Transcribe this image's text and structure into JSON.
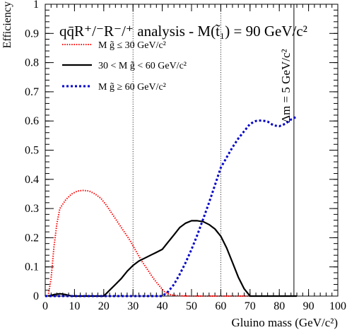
{
  "chart_data": {
    "type": "line",
    "title": "qq̄R⁺/⁻R⁻/⁺ analysis - M(t̃₁) = 90 GeV/c²",
    "xlabel": "Gluino mass (GeV/c²)",
    "ylabel": "Efficiency",
    "xlim": [
      0,
      100
    ],
    "ylim": [
      0,
      1
    ],
    "xticks": [
      "0",
      "10",
      "20",
      "30",
      "40",
      "50",
      "60",
      "70",
      "80",
      "90",
      "100"
    ],
    "yticks": [
      "0",
      "0.1",
      "0.2",
      "0.3",
      "0.4",
      "0.5",
      "0.6",
      "0.7",
      "0.8",
      "0.9",
      "1"
    ],
    "grid": false,
    "legend_position": "top-left",
    "series": [
      {
        "name": "M g̃ ≤ 30 GeV/c²",
        "color": "#ff0000",
        "style": "dotted",
        "points": [
          [
            1,
            0
          ],
          [
            2,
            0.06
          ],
          [
            3,
            0.17
          ],
          [
            4,
            0.25
          ],
          [
            5,
            0.3
          ],
          [
            7,
            0.33
          ],
          [
            9,
            0.35
          ],
          [
            11,
            0.36
          ],
          [
            13,
            0.362
          ],
          [
            15,
            0.36
          ],
          [
            17,
            0.35
          ],
          [
            19,
            0.335
          ],
          [
            21,
            0.31
          ],
          [
            23,
            0.28
          ],
          [
            25,
            0.25
          ],
          [
            27,
            0.22
          ],
          [
            29,
            0.19
          ],
          [
            31,
            0.155
          ],
          [
            33,
            0.12
          ],
          [
            35,
            0.09
          ],
          [
            37,
            0.06
          ],
          [
            39,
            0.035
          ],
          [
            41,
            0.012
          ],
          [
            43,
            0.004
          ],
          [
            46,
            0.001
          ],
          [
            50,
            0
          ],
          [
            86,
            0
          ]
        ]
      },
      {
        "name": "30 < M g̃ < 60 GeV/c²",
        "color": "#000000",
        "style": "solid",
        "points": [
          [
            1,
            0
          ],
          [
            3,
            0.005
          ],
          [
            5,
            0.008
          ],
          [
            7,
            0.005
          ],
          [
            9,
            0
          ],
          [
            20,
            0
          ],
          [
            22,
            0.02
          ],
          [
            24,
            0.04
          ],
          [
            26,
            0.06
          ],
          [
            28,
            0.085
          ],
          [
            30,
            0.105
          ],
          [
            32,
            0.12
          ],
          [
            34,
            0.13
          ],
          [
            36,
            0.14
          ],
          [
            38,
            0.15
          ],
          [
            40,
            0.16
          ],
          [
            42,
            0.185
          ],
          [
            44,
            0.21
          ],
          [
            46,
            0.235
          ],
          [
            48,
            0.25
          ],
          [
            50,
            0.258
          ],
          [
            52,
            0.258
          ],
          [
            54,
            0.255
          ],
          [
            56,
            0.245
          ],
          [
            58,
            0.23
          ],
          [
            60,
            0.205
          ],
          [
            62,
            0.165
          ],
          [
            64,
            0.115
          ],
          [
            66,
            0.065
          ],
          [
            68,
            0.025
          ],
          [
            70,
            0
          ],
          [
            86,
            0
          ]
        ]
      },
      {
        "name": "M g̃ ≥ 60 GeV/c²",
        "color": "#0000cc",
        "style": "dashed",
        "points": [
          [
            0,
            0
          ],
          [
            40,
            0
          ],
          [
            42,
            0.015
          ],
          [
            44,
            0.04
          ],
          [
            46,
            0.075
          ],
          [
            48,
            0.115
          ],
          [
            50,
            0.16
          ],
          [
            52,
            0.21
          ],
          [
            54,
            0.265
          ],
          [
            56,
            0.32
          ],
          [
            58,
            0.38
          ],
          [
            60,
            0.44
          ],
          [
            62,
            0.475
          ],
          [
            64,
            0.51
          ],
          [
            66,
            0.54
          ],
          [
            68,
            0.565
          ],
          [
            70,
            0.59
          ],
          [
            72,
            0.6
          ],
          [
            74,
            0.602
          ],
          [
            76,
            0.598
          ],
          [
            78,
            0.585
          ],
          [
            80,
            0.582
          ],
          [
            82,
            0.59
          ],
          [
            84,
            0.605
          ],
          [
            86,
            0.615
          ]
        ]
      }
    ],
    "vlines": [
      {
        "x": 30,
        "style": "dotted"
      },
      {
        "x": 60,
        "style": "dotted"
      },
      {
        "x": 85,
        "style": "solid",
        "label": "Δm = 5 GeV/c²"
      }
    ]
  }
}
